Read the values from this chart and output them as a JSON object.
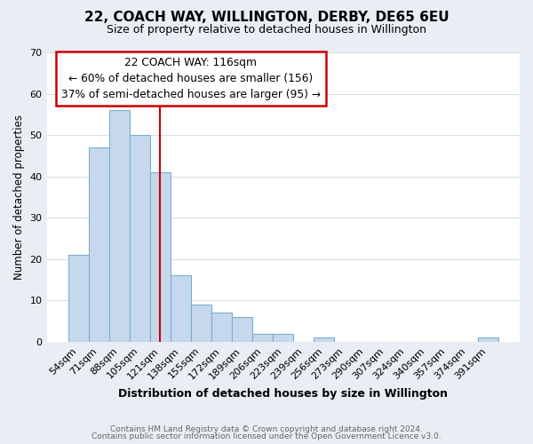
{
  "title": "22, COACH WAY, WILLINGTON, DERBY, DE65 6EU",
  "subtitle": "Size of property relative to detached houses in Willington",
  "xlabel": "Distribution of detached houses by size in Willington",
  "ylabel": "Number of detached properties",
  "categories": [
    "54sqm",
    "71sqm",
    "88sqm",
    "105sqm",
    "121sqm",
    "138sqm",
    "155sqm",
    "172sqm",
    "189sqm",
    "206sqm",
    "223sqm",
    "239sqm",
    "256sqm",
    "273sqm",
    "290sqm",
    "307sqm",
    "324sqm",
    "340sqm",
    "357sqm",
    "374sqm",
    "391sqm"
  ],
  "values": [
    21,
    47,
    56,
    50,
    41,
    16,
    9,
    7,
    6,
    2,
    2,
    0,
    1,
    0,
    0,
    0,
    0,
    0,
    0,
    0,
    1
  ],
  "bar_color": "#c6d9ec",
  "bar_edge_color": "#7aaed0",
  "vline_index": 4,
  "vline_color": "#cc0000",
  "annotation_text": "22 COACH WAY: 116sqm\n← 60% of detached houses are smaller (156)\n37% of semi-detached houses are larger (95) →",
  "annotation_box_color": "#ffffff",
  "annotation_box_edge_color": "#cc0000",
  "ylim": [
    0,
    70
  ],
  "yticks": [
    0,
    10,
    20,
    30,
    40,
    50,
    60,
    70
  ],
  "footer_line1": "Contains HM Land Registry data © Crown copyright and database right 2024.",
  "footer_line2": "Contains public sector information licensed under the Open Government Licence v3.0.",
  "bg_color": "#e8eef4",
  "plot_bg_color": "#ffffff",
  "grid_color": "#d0dde8"
}
